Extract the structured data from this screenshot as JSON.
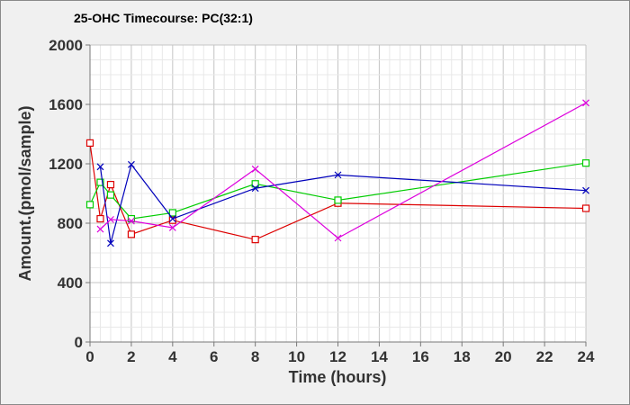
{
  "chart_data": {
    "type": "line",
    "title": "25-OHC Timecourse: PC(32:1)",
    "xlabel": "Time (hours)",
    "ylabel": "Amount.(pmol/sample)",
    "xlim": [
      0,
      24
    ],
    "ylim": [
      0,
      2000
    ],
    "x_ticks": [
      0,
      2,
      4,
      6,
      8,
      10,
      12,
      14,
      16,
      18,
      20,
      22,
      24
    ],
    "y_ticks": [
      0,
      400,
      800,
      1200,
      1600,
      2000
    ],
    "grid": true,
    "legend": "none",
    "series": [
      {
        "color": "#dd0000",
        "marker": "square",
        "points": [
          [
            0,
            1340
          ],
          [
            0.5,
            830
          ],
          [
            1,
            1060
          ],
          [
            2,
            725
          ],
          [
            4,
            820
          ],
          [
            8,
            690
          ],
          [
            12,
            935
          ],
          [
            24,
            900
          ]
        ]
      },
      {
        "color": "#00cc00",
        "marker": "square",
        "points": [
          [
            0,
            925
          ],
          [
            0.5,
            1075
          ],
          [
            1,
            990
          ],
          [
            2,
            830
          ],
          [
            4,
            870
          ],
          [
            8,
            1065
          ],
          [
            12,
            955
          ],
          [
            24,
            1205
          ]
        ]
      },
      {
        "color": "#0000bb",
        "marker": "x",
        "points": [
          [
            0.5,
            1180
          ],
          [
            1,
            665
          ],
          [
            2,
            1195
          ],
          [
            4,
            830
          ],
          [
            8,
            1035
          ],
          [
            12,
            1125
          ],
          [
            24,
            1020
          ]
        ]
      },
      {
        "color": "#dd00dd",
        "marker": "x",
        "points": [
          [
            0.5,
            760
          ],
          [
            1,
            825
          ],
          [
            2,
            815
          ],
          [
            4,
            770
          ],
          [
            8,
            1165
          ],
          [
            12,
            700
          ],
          [
            24,
            1610
          ]
        ]
      }
    ]
  }
}
